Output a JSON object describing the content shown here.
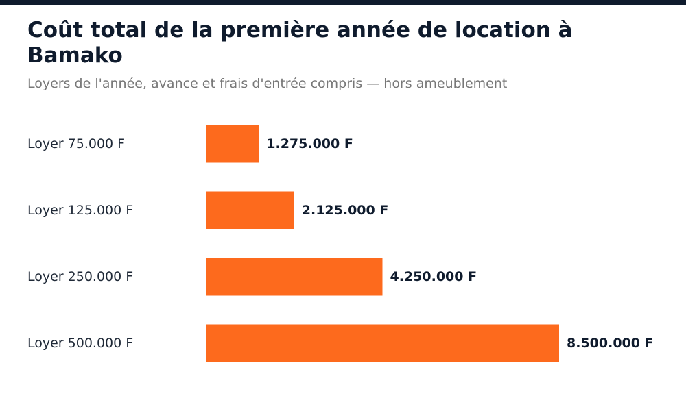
{
  "colors": {
    "top_bar": "#0f1b2d",
    "bar": "#fd6a1d",
    "title": "#0f1b2d",
    "subtitle": "#777777"
  },
  "chart_data": {
    "type": "bar",
    "orientation": "horizontal",
    "title": "Coût total de la première année de location à Bamako",
    "subtitle": "Loyers de l'année, avance et frais d'entrée compris — hors ameublement",
    "categories": [
      "Loyer 75.000 F",
      "Loyer 125.000 F",
      "Loyer 250.000 F",
      "Loyer 500.000 F"
    ],
    "values": [
      1275000,
      2125000,
      4250000,
      8500000
    ],
    "value_labels": [
      "1.275.000 F",
      "2.125.000 F",
      "4.250.000 F",
      "8.500.000 F"
    ],
    "xlabel": "",
    "ylabel": "",
    "grid": false,
    "legend": "none"
  }
}
